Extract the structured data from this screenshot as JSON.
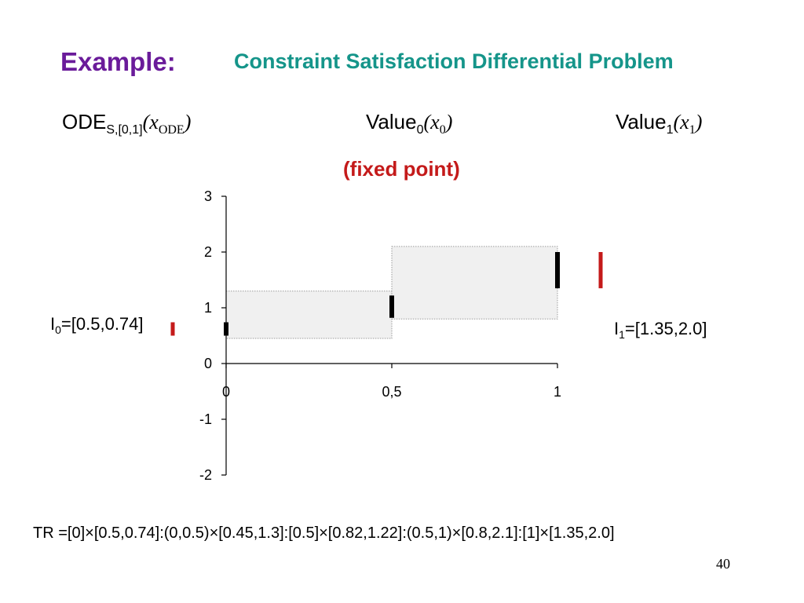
{
  "header": {
    "example_label": "Example:",
    "title": "Constraint Satisfaction Differential Problem"
  },
  "terms": {
    "ode": {
      "name": "ODE",
      "subscript": "S,[0,1]",
      "paren_open": "(",
      "var": "x",
      "var_sub": "ODE",
      "paren_close": ")"
    },
    "value0": {
      "name": "Value",
      "subscript": "0",
      "paren_open": "(",
      "var": "x",
      "var_sub": "0",
      "paren_close": ")"
    },
    "value1": {
      "name": "Value",
      "subscript": "1",
      "paren_open": "(",
      "var": "x",
      "var_sub": "1",
      "paren_close": ")"
    }
  },
  "fixed_point_label": "(fixed point)",
  "interval_labels": {
    "i0": {
      "name": "I",
      "subscript": "0",
      "value": "=[0.5,0.74]"
    },
    "i1": {
      "name": "I",
      "subscript": "1",
      "value": "=[1.35,2.0]"
    }
  },
  "tr_text": "TR =[0]×[0.5,0.74]:(0,0.5)×[0.45,1.3]:[0.5]×[0.82,1.22]:(0.5,1)×[0.8,2.1]:[1]×[1.35,2.0]",
  "page_number": "40",
  "colors": {
    "purple": "#6a1b9a",
    "teal": "#15958a",
    "red": "#c41a1a",
    "box_fill": "#f0f0f0"
  },
  "chart_data": {
    "type": "diagram",
    "x_ticks": [
      {
        "value": 0,
        "label": "0"
      },
      {
        "value": 0.5,
        "label": "0,5"
      },
      {
        "value": 1,
        "label": "1"
      }
    ],
    "y_ticks": [
      {
        "value": 3,
        "label": "3"
      },
      {
        "value": 2,
        "label": "2"
      },
      {
        "value": 1,
        "label": "1"
      },
      {
        "value": 0,
        "label": "0"
      },
      {
        "value": -1,
        "label": "-1"
      },
      {
        "value": -2,
        "label": "-2"
      }
    ],
    "xlim": [
      0,
      1
    ],
    "ylim": [
      -2,
      3
    ],
    "boxes": [
      {
        "x0": 0,
        "x1": 0.5,
        "y0": 0.45,
        "y1": 1.3
      },
      {
        "x0": 0.5,
        "x1": 1,
        "y0": 0.8,
        "y1": 2.1
      }
    ],
    "intervals": [
      {
        "x": 0,
        "y0": 0.5,
        "y1": 0.74
      },
      {
        "x": 0.5,
        "y0": 0.82,
        "y1": 1.22
      },
      {
        "x": 1,
        "y0": 1.35,
        "y1": 2.0
      }
    ],
    "red_intervals": [
      {
        "side": "left",
        "y0": 0.5,
        "y1": 0.74
      },
      {
        "side": "right",
        "y0": 1.35,
        "y1": 2.0
      }
    ]
  }
}
